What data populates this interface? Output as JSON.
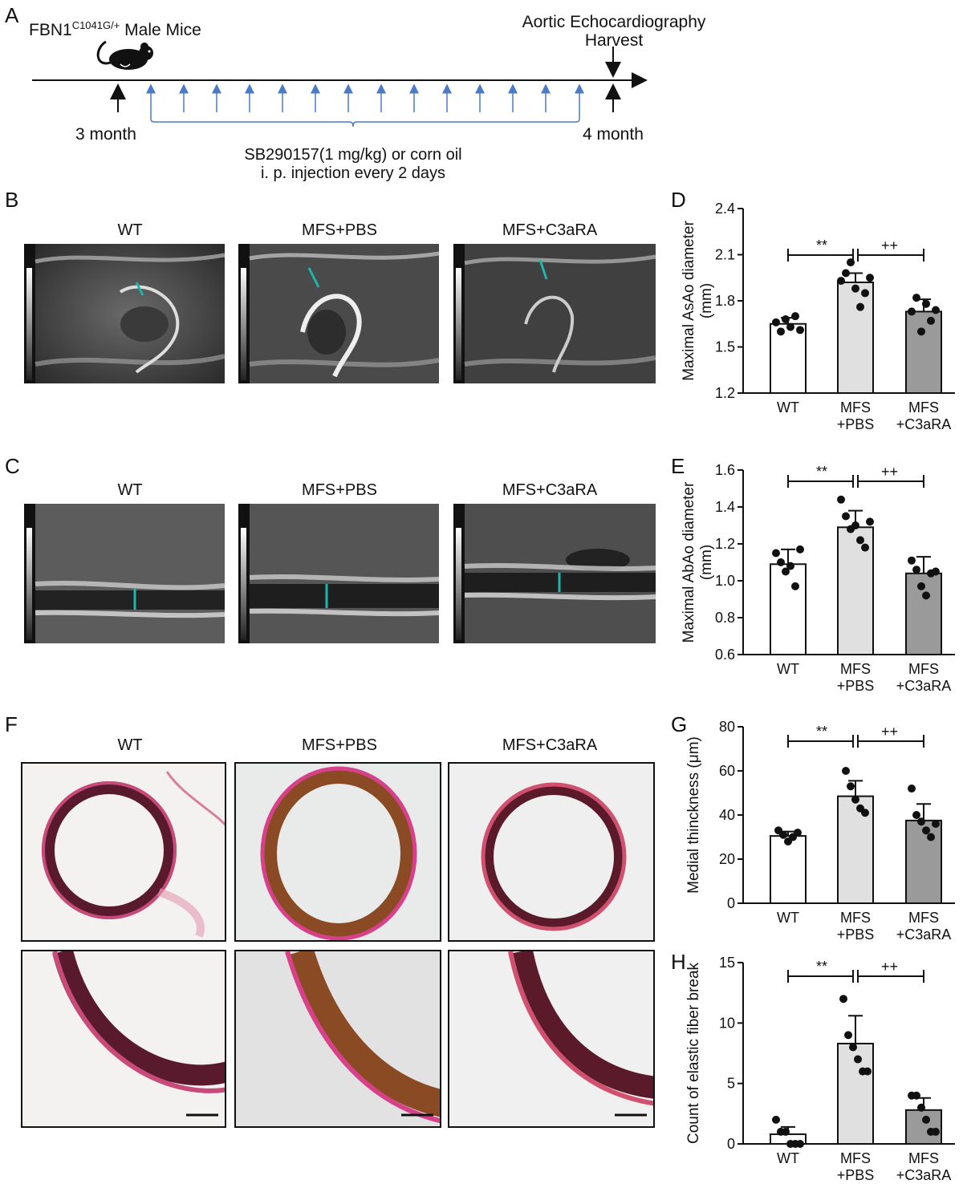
{
  "panel_A": {
    "letter": "A",
    "mice_label": "FBN1",
    "mice_superscript": "C1041G/+",
    "mice_suffix": " Male Mice",
    "start_label": "3 month",
    "end_label": "4 month",
    "end_event_line1": "Aortic Echocardiography",
    "end_event_line2": "Harvest",
    "treatment_line1": "SB290157(1 mg/kg) or corn oil",
    "treatment_line2": "i. p. injection every 2 days"
  },
  "panel_B": {
    "letter": "B",
    "labels": [
      "WT",
      "MFS+PBS",
      "MFS+C3aRA"
    ]
  },
  "panel_C": {
    "letter": "C",
    "labels": [
      "WT",
      "MFS+PBS",
      "MFS+C3aRA"
    ]
  },
  "panel_F": {
    "letter": "F",
    "labels": [
      "WT",
      "MFS+PBS",
      "MFS+C3aRA"
    ]
  },
  "colors": {
    "wt": "#ffffff",
    "mfs_pbs": "#e0e0e0",
    "mfs_c3ara": "#9a9a9a",
    "arrow": "#1fb5a8",
    "timeline_arrow": "#4a7ac8"
  },
  "chart_data": [
    {
      "id": "D",
      "letter": "D",
      "type": "bar",
      "categories": [
        "WT",
        "MFS\n+PBS",
        "MFS\n+C3aRA"
      ],
      "values": [
        1.65,
        1.92,
        1.73
      ],
      "errors": [
        0.04,
        0.06,
        0.08
      ],
      "points": [
        [
          1.66,
          1.6,
          1.68,
          1.63,
          1.7,
          1.61
        ],
        [
          1.93,
          1.98,
          2.05,
          1.88,
          1.76,
          1.85,
          1.95
        ],
        [
          1.73,
          1.82,
          1.6,
          1.78,
          1.67,
          1.74
        ]
      ],
      "ylabel": "Maximal AsAo diameter\n(mm)",
      "ylim": [
        1.2,
        2.4
      ],
      "yticks": [
        1.2,
        1.5,
        1.8,
        2.1,
        2.4
      ],
      "sig_left": "**",
      "sig_right": "++"
    },
    {
      "id": "E",
      "letter": "E",
      "type": "bar",
      "categories": [
        "WT",
        "MFS\n+PBS",
        "MFS\n+C3aRA"
      ],
      "values": [
        1.09,
        1.29,
        1.04
      ],
      "errors": [
        0.08,
        0.09,
        0.09
      ],
      "points": [
        [
          1.15,
          1.1,
          1.05,
          1.08,
          0.97,
          1.17
        ],
        [
          1.44,
          1.35,
          1.28,
          1.3,
          1.22,
          1.18,
          1.32
        ],
        [
          1.11,
          1.06,
          0.97,
          0.92,
          1.04,
          1.05
        ]
      ],
      "ylabel": "Maximal AbAo diameter\n(mm)",
      "ylim": [
        0.6,
        1.6
      ],
      "yticks": [
        0.6,
        0.8,
        1.0,
        1.2,
        1.4,
        1.6
      ],
      "sig_left": "**",
      "sig_right": "++"
    },
    {
      "id": "G",
      "letter": "G",
      "type": "bar",
      "categories": [
        "WT",
        "MFS\n+PBS",
        "MFS\n+C3aRA"
      ],
      "values": [
        30.5,
        48.5,
        37.5
      ],
      "errors": [
        2.0,
        7.0,
        7.5
      ],
      "points": [
        [
          33,
          31,
          28,
          30,
          32
        ],
        [
          60,
          53,
          47,
          43,
          41
        ],
        [
          52,
          40,
          37,
          33,
          30,
          36
        ]
      ],
      "ylabel": "Medial thinckness (μm)",
      "ylim": [
        0,
        80
      ],
      "yticks": [
        0,
        20,
        40,
        60,
        80
      ],
      "sig_left": "**",
      "sig_right": "++"
    },
    {
      "id": "H",
      "letter": "H",
      "type": "bar",
      "categories": [
        "WT",
        "MFS\n+PBS",
        "MFS\n+C3aRA"
      ],
      "values": [
        0.8,
        8.3,
        2.8
      ],
      "errors": [
        0.6,
        2.3,
        1.0
      ],
      "points": [
        [
          2,
          1,
          1,
          0,
          0,
          0
        ],
        [
          12,
          9,
          8,
          7,
          6,
          6
        ],
        [
          4,
          4,
          3,
          2,
          1,
          1
        ]
      ],
      "ylabel": "Count of elastic fiber break",
      "ylim": [
        0,
        15
      ],
      "yticks": [
        0,
        5,
        10,
        15
      ],
      "sig_left": "**",
      "sig_right": "++"
    }
  ]
}
